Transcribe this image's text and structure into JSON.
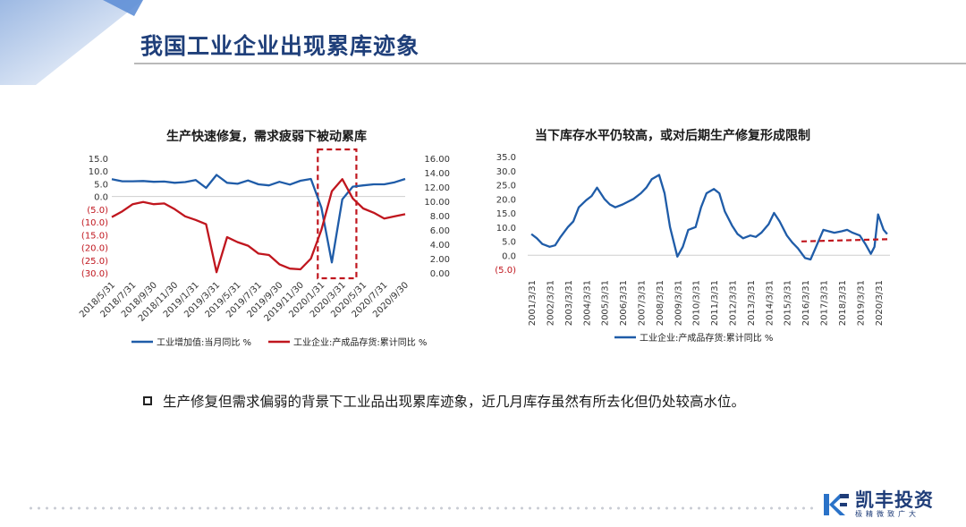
{
  "header": {
    "title": "我国工业企业出现累库迹象"
  },
  "colors": {
    "blue": "#1f5ca8",
    "red": "#c0161e",
    "title": "#1f3f7a"
  },
  "charts": {
    "left_title": "生产快速修复，需求疲弱下被动累库",
    "right_title": "当下库存水平仍较高，或对后期生产修复形成限制"
  },
  "chart_data": [
    {
      "type": "line",
      "title": "生产快速修复，需求疲弱下被动累库",
      "x_tick_labels": [
        "2018/5/31",
        "2018/7/31",
        "2018/9/30",
        "2018/11/30",
        "2019/1/31",
        "2019/3/31",
        "2019/5/31",
        "2019/7/31",
        "2019/9/30",
        "2019/11/30",
        "2020/1/31",
        "2020/3/31",
        "2020/5/31",
        "2020/7/31",
        "2020/9/30"
      ],
      "y_left": {
        "ylim": [
          -30,
          15
        ],
        "tick_labels": [
          "15.0",
          "10.0",
          "5.0",
          "0.0",
          "(5.0)",
          "(10.0)",
          "(15.0)",
          "(20.0)",
          "(25.0)",
          "(30.0)"
        ],
        "tick_values": [
          15,
          10,
          5,
          0,
          -5,
          -10,
          -15,
          -20,
          -25,
          -30
        ]
      },
      "y_right": {
        "ylim": [
          0,
          16
        ],
        "tick_labels": [
          "16.00",
          "14.00",
          "12.00",
          "10.00",
          "8.00",
          "6.00",
          "4.00",
          "2.00",
          "0.00"
        ],
        "tick_values": [
          16,
          14,
          12,
          10,
          8,
          6,
          4,
          2,
          0
        ]
      },
      "series": [
        {
          "name": "工业增加值:当月同比 %",
          "axis": "left",
          "color": "#1f5ca8",
          "x": [
            "2018/5",
            "2018/6",
            "2018/7",
            "2018/8",
            "2018/9",
            "2018/10",
            "2018/11",
            "2018/12",
            "2019/1",
            "2019/2",
            "2019/3",
            "2019/4",
            "2019/5",
            "2019/6",
            "2019/7",
            "2019/8",
            "2019/9",
            "2019/10",
            "2019/11",
            "2019/12",
            "2020/1",
            "2020/2",
            "2020/3",
            "2020/4",
            "2020/5",
            "2020/6",
            "2020/7",
            "2020/8",
            "2020/9"
          ],
          "values": [
            6.8,
            6.0,
            6.0,
            6.1,
            5.8,
            5.9,
            5.4,
            5.7,
            6.5,
            3.4,
            8.5,
            5.4,
            5.0,
            6.3,
            4.8,
            4.4,
            5.8,
            4.7,
            6.2,
            6.9,
            -4.3,
            -25.9,
            -1.1,
            3.9,
            4.4,
            4.8,
            4.8,
            5.6,
            6.9
          ]
        },
        {
          "name": "工业企业:产成品存货:累计同比 %",
          "axis": "right",
          "color": "#c0161e",
          "x": [
            "2018/5",
            "2018/6",
            "2018/7",
            "2018/8",
            "2018/9",
            "2018/10",
            "2018/11",
            "2018/12",
            "2019/1",
            "2019/2",
            "2019/3",
            "2019/4",
            "2019/5",
            "2019/6",
            "2019/7",
            "2019/8",
            "2019/9",
            "2019/10",
            "2019/11",
            "2019/12",
            "2020/1",
            "2020/2",
            "2020/3",
            "2020/4",
            "2020/5",
            "2020/6",
            "2020/7",
            "2020/8",
            "2020/9"
          ],
          "values": [
            7.8,
            8.6,
            9.6,
            9.9,
            9.6,
            9.7,
            8.9,
            7.9,
            7.4,
            6.8,
            0.1,
            5.0,
            4.3,
            3.8,
            2.7,
            2.5,
            1.2,
            0.6,
            0.5,
            2.0,
            6.0,
            11.4,
            13.1,
            10.4,
            9.0,
            8.4,
            7.6,
            7.9,
            8.2
          ]
        }
      ],
      "annotation": "dashed red box highlighting 2020/1 to 2020/4"
    },
    {
      "type": "line",
      "title": "当下库存水平仍较高，或对后期生产修复形成限制",
      "x_tick_labels": [
        "2001/3/31",
        "2002/3/31",
        "2003/3/31",
        "2004/3/31",
        "2005/3/31",
        "2006/3/31",
        "2007/3/31",
        "2008/3/31",
        "2009/3/31",
        "2010/3/31",
        "2011/3/31",
        "2012/3/31",
        "2013/3/31",
        "2014/3/31",
        "2015/3/31",
        "2016/3/31",
        "2017/3/31",
        "2018/3/31",
        "2019/3/31",
        "2020/3/31"
      ],
      "ylim": [
        -5,
        35
      ],
      "tick_labels": [
        "35.0",
        "30.0",
        "25.0",
        "20.0",
        "15.0",
        "10.0",
        "5.0",
        "0.0",
        "(5.0)"
      ],
      "tick_values": [
        35,
        30,
        25,
        20,
        15,
        10,
        5,
        0,
        -5
      ],
      "series": [
        {
          "name": "工业企业:产成品存货:累计同比 %",
          "color": "#1f5ca8",
          "x": [
            2001.2,
            2001.5,
            2001.8,
            2002.2,
            2002.5,
            2002.8,
            2003.2,
            2003.5,
            2003.8,
            2004.2,
            2004.5,
            2004.8,
            2005.2,
            2005.5,
            2005.8,
            2006.2,
            2006.5,
            2006.8,
            2007.2,
            2007.5,
            2007.8,
            2008.2,
            2008.5,
            2008.8,
            2009.2,
            2009.5,
            2009.8,
            2010.2,
            2010.5,
            2010.8,
            2011.2,
            2011.5,
            2011.8,
            2012.2,
            2012.5,
            2012.8,
            2013.2,
            2013.5,
            2013.8,
            2014.2,
            2014.5,
            2014.8,
            2015.2,
            2015.5,
            2015.8,
            2016.2,
            2016.5,
            2016.8,
            2017.2,
            2017.5,
            2017.8,
            2018.2,
            2018.5,
            2018.8,
            2019.2,
            2019.5,
            2019.8,
            2020.0,
            2020.2,
            2020.5,
            2020.7
          ],
          "values": [
            7.5,
            6.0,
            4.0,
            3.0,
            3.5,
            6.5,
            10.0,
            12.0,
            17.0,
            19.5,
            21.0,
            24.0,
            20.0,
            18.0,
            17.0,
            18.0,
            19.0,
            20.0,
            22.0,
            24.0,
            27.0,
            28.5,
            22.0,
            10.0,
            -0.5,
            3.0,
            9.0,
            10.0,
            17.0,
            22.0,
            23.5,
            22.0,
            15.5,
            10.5,
            7.5,
            6.0,
            7.0,
            6.5,
            8.0,
            11.0,
            15.0,
            12.0,
            7.0,
            4.5,
            2.5,
            -1.0,
            -1.5,
            3.0,
            9.0,
            8.5,
            8.0,
            8.5,
            9.0,
            8.0,
            7.0,
            4.0,
            0.5,
            3.0,
            14.5,
            9.0,
            7.5
          ]
        }
      ],
      "annotation": "dashed red trend line from 2016 to 2020"
    }
  ],
  "legend": {
    "left": [
      "工业增加值:当月同比 %",
      "工业企业:产成品存货:累计同比 %"
    ],
    "right": [
      "工业企业:产成品存货:累计同比 %"
    ]
  },
  "bullet": {
    "text": "生产修复但需求偏弱的背景下工业品出现累库迹象，近几月库存虽然有所去化但仍处较高水位。"
  },
  "logo": {
    "name": "凯丰投资",
    "slogan": "极精微致广大"
  }
}
